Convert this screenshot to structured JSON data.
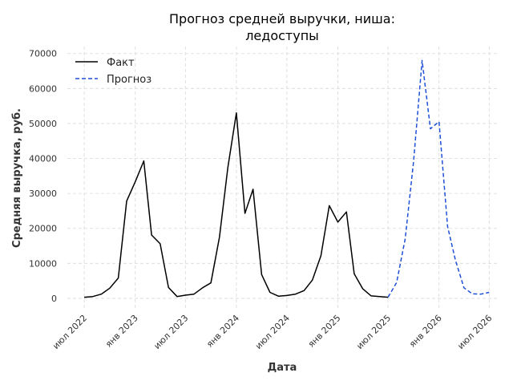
{
  "chart_data": {
    "type": "line",
    "title_lines": [
      "Прогноз средней выручки, ниша:",
      "ледоступы"
    ],
    "xlabel": "Дата",
    "ylabel": "Средняя выручка, руб.",
    "ylim": [
      -3000,
      72000
    ],
    "yticks": [
      0,
      10000,
      20000,
      30000,
      40000,
      50000,
      60000,
      70000
    ],
    "ytick_labels": [
      "0",
      "10000",
      "20000",
      "30000",
      "40000",
      "50000",
      "60000",
      "70000"
    ],
    "xlim": [
      "2022-05-01",
      "2026-08-01"
    ],
    "xticks": [
      "2022-07-01",
      "2023-01-01",
      "2023-07-01",
      "2024-01-01",
      "2024-07-01",
      "2025-01-01",
      "2025-07-01",
      "2026-01-01",
      "2026-07-01"
    ],
    "xtick_labels": [
      "июл 2022",
      "янв 2023",
      "июл 2023",
      "янв 2024",
      "июл 2024",
      "янв 2025",
      "июл 2025",
      "янв 2026",
      "июл 2026"
    ],
    "grid": true,
    "legend_position": "top-left",
    "series": [
      {
        "name": "Факт",
        "color": "#000000",
        "style": "solid",
        "points": [
          {
            "x": "2022-07-01",
            "y": 300
          },
          {
            "x": "2022-08-01",
            "y": 500
          },
          {
            "x": "2022-09-01",
            "y": 1200
          },
          {
            "x": "2022-10-01",
            "y": 2900
          },
          {
            "x": "2022-11-01",
            "y": 5800
          },
          {
            "x": "2022-12-01",
            "y": 27800
          },
          {
            "x": "2023-01-01",
            "y": 33300
          },
          {
            "x": "2023-02-01",
            "y": 39300
          },
          {
            "x": "2023-03-01",
            "y": 18100
          },
          {
            "x": "2023-04-01",
            "y": 15600
          },
          {
            "x": "2023-05-01",
            "y": 3100
          },
          {
            "x": "2023-06-01",
            "y": 500
          },
          {
            "x": "2023-07-01",
            "y": 900
          },
          {
            "x": "2023-08-01",
            "y": 1200
          },
          {
            "x": "2023-09-01",
            "y": 3000
          },
          {
            "x": "2023-10-01",
            "y": 4400
          },
          {
            "x": "2023-11-01",
            "y": 17500
          },
          {
            "x": "2023-12-01",
            "y": 37300
          },
          {
            "x": "2024-01-01",
            "y": 53000
          },
          {
            "x": "2024-02-01",
            "y": 24300
          },
          {
            "x": "2024-03-01",
            "y": 31200
          },
          {
            "x": "2024-04-01",
            "y": 6800
          },
          {
            "x": "2024-05-01",
            "y": 1700
          },
          {
            "x": "2024-06-01",
            "y": 600
          },
          {
            "x": "2024-07-01",
            "y": 800
          },
          {
            "x": "2024-08-01",
            "y": 1200
          },
          {
            "x": "2024-09-01",
            "y": 2200
          },
          {
            "x": "2024-10-01",
            "y": 5200
          },
          {
            "x": "2024-11-01",
            "y": 12200
          },
          {
            "x": "2024-12-01",
            "y": 26500
          },
          {
            "x": "2025-01-01",
            "y": 21800
          },
          {
            "x": "2025-02-01",
            "y": 24700
          },
          {
            "x": "2025-03-01",
            "y": 7000
          },
          {
            "x": "2025-04-01",
            "y": 2700
          },
          {
            "x": "2025-05-01",
            "y": 700
          },
          {
            "x": "2025-06-01",
            "y": 500
          },
          {
            "x": "2025-07-01",
            "y": 300
          }
        ]
      },
      {
        "name": "Прогноз",
        "color": "#1f4fd6",
        "style": "dashed",
        "points": [
          {
            "x": "2025-07-01",
            "y": 300
          },
          {
            "x": "2025-08-01",
            "y": 4500
          },
          {
            "x": "2025-09-01",
            "y": 17000
          },
          {
            "x": "2025-10-01",
            "y": 39000
          },
          {
            "x": "2025-11-01",
            "y": 68000
          },
          {
            "x": "2025-12-01",
            "y": 48500
          },
          {
            "x": "2026-01-01",
            "y": 50500
          },
          {
            "x": "2026-02-01",
            "y": 20500
          },
          {
            "x": "2026-03-01",
            "y": 11000
          },
          {
            "x": "2026-04-01",
            "y": 3000
          },
          {
            "x": "2026-05-01",
            "y": 1300
          },
          {
            "x": "2026-06-01",
            "y": 1200
          },
          {
            "x": "2026-07-01",
            "y": 1700
          }
        ]
      }
    ]
  }
}
